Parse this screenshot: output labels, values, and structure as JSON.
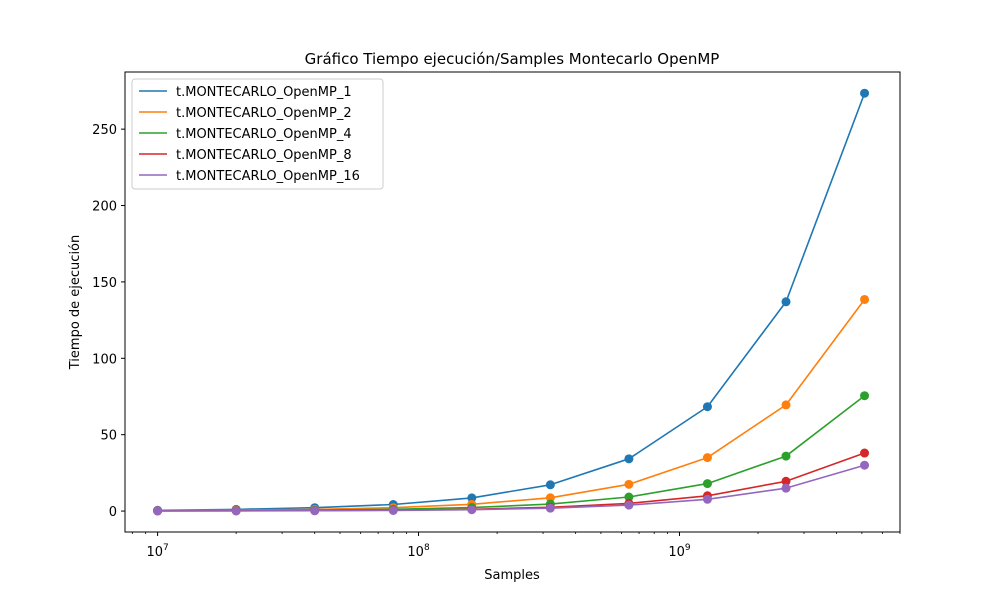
{
  "chart_data": {
    "type": "line",
    "title": "Gráfico Tiempo ejecución/Samples Montecarlo OpenMP",
    "xlabel": "Samples",
    "ylabel": "Tiempo de ejecución",
    "xscale": "log",
    "xlim": [
      7500000,
      7000000000
    ],
    "ylim": [
      -13.7,
      287.4
    ],
    "x_ticks": [
      {
        "value": 10000000,
        "base": "10",
        "exp": "7"
      },
      {
        "value": 100000000,
        "base": "10",
        "exp": "8"
      },
      {
        "value": 1000000000,
        "base": "10",
        "exp": "9"
      }
    ],
    "y_ticks": [
      0,
      50,
      100,
      150,
      200,
      250
    ],
    "x": [
      10000000,
      20000000,
      40000000,
      80000000,
      160000000,
      320000000,
      640000000,
      1280000000,
      2560000000,
      5120000000
    ],
    "series": [
      {
        "name": "t.MONTECARLO_OpenMP_1",
        "color": "#1f77b4",
        "values": [
          0.5,
          1.1,
          2.2,
          4.3,
          8.6,
          17.2,
          34.2,
          68.3,
          137.0,
          273.5
        ]
      },
      {
        "name": "t.MONTECARLO_OpenMP_2",
        "color": "#ff7f0e",
        "values": [
          0.3,
          0.6,
          1.1,
          2.2,
          4.4,
          8.7,
          17.5,
          35.0,
          69.5,
          138.5
        ]
      },
      {
        "name": "t.MONTECARLO_OpenMP_4",
        "color": "#2ca02c",
        "values": [
          0.2,
          0.3,
          0.6,
          1.2,
          2.3,
          4.6,
          9.2,
          18.0,
          36.0,
          75.5
        ]
      },
      {
        "name": "t.MONTECARLO_OpenMP_8",
        "color": "#d62728",
        "values": [
          0.1,
          0.2,
          0.3,
          0.6,
          1.2,
          2.5,
          5.0,
          10.0,
          19.5,
          38.0
        ]
      },
      {
        "name": "t.MONTECARLO_OpenMP_16",
        "color": "#9467bd",
        "values": [
          0.1,
          0.1,
          0.2,
          0.4,
          0.9,
          1.9,
          3.9,
          7.7,
          15.0,
          30.0
        ]
      }
    ],
    "legend_position": "top-left",
    "grid": false
  }
}
